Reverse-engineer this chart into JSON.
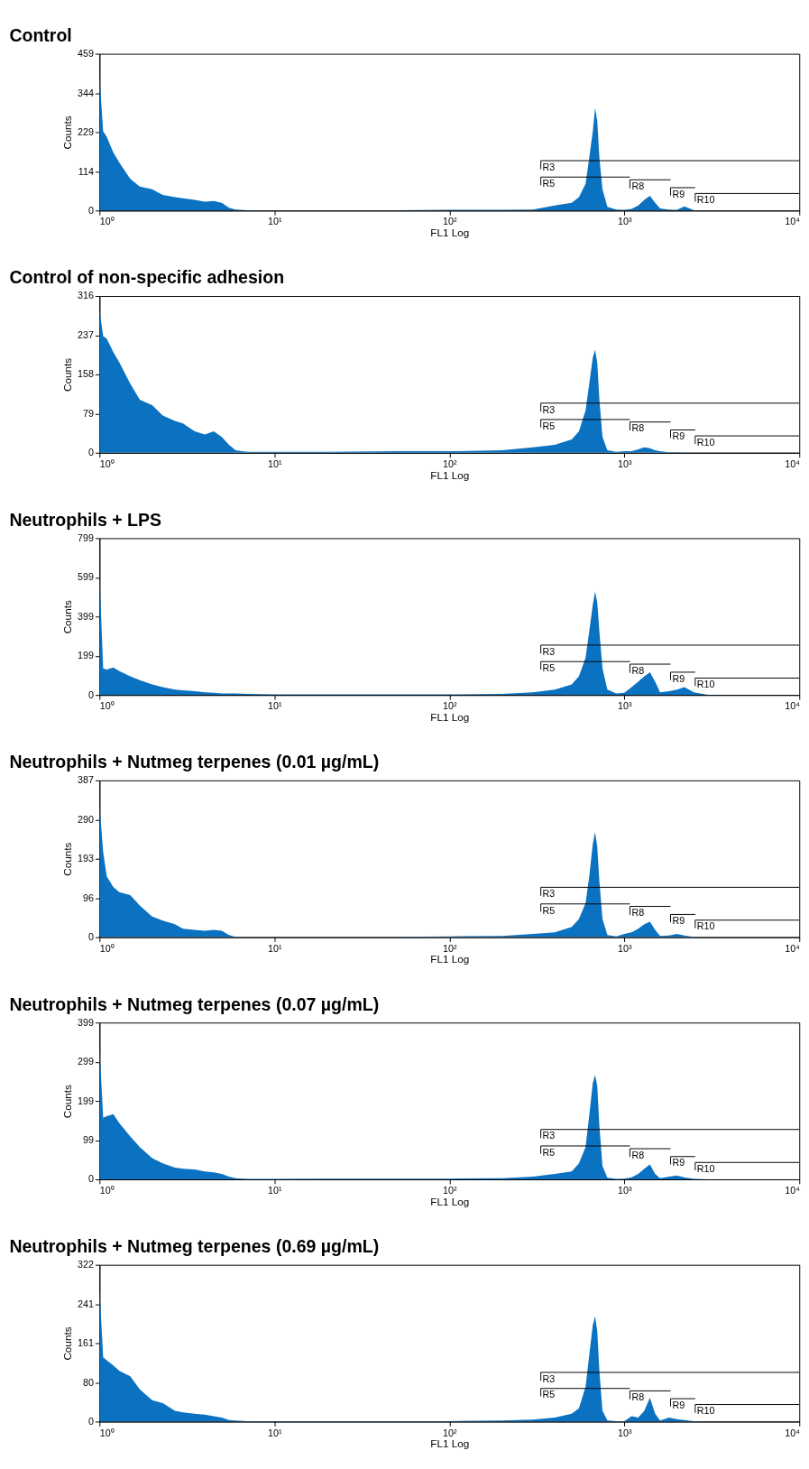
{
  "chart_data": [
    {
      "type": "area",
      "title": "Control",
      "xlabel": "FL1 Log",
      "ylabel": "Counts",
      "log": "x",
      "grid": false,
      "x": [
        1,
        1.05,
        1.1,
        1.2,
        1.3,
        1.5,
        1.7,
        2,
        2.3,
        2.7,
        3,
        3.5,
        4,
        4.5,
        5,
        5.5,
        6,
        7,
        10,
        20,
        50,
        100,
        200,
        300,
        400,
        500,
        550,
        600,
        630,
        660,
        680,
        700,
        720,
        750,
        800,
        900,
        1000,
        1100,
        1200,
        1300,
        1400,
        1500,
        1600,
        1800,
        2000,
        2200,
        2500,
        3000,
        10000
      ],
      "xlim": [
        1,
        10000
      ],
      "xticks": [
        {
          "value": 1,
          "label": "10⁰"
        },
        {
          "value": 10,
          "label": "10¹"
        },
        {
          "value": 100,
          "label": "10²"
        },
        {
          "value": 1000,
          "label": "10³"
        },
        {
          "value": 10000,
          "label": "10⁴"
        }
      ],
      "ylim": [
        0,
        459
      ],
      "yticks": [
        0,
        114,
        229,
        344,
        459
      ],
      "series": [
        {
          "color": "#0b72c2",
          "values": [
            395,
            232,
            216,
            170,
            140,
            93,
            70,
            62,
            46,
            39,
            36,
            31,
            26,
            28,
            23,
            8,
            3,
            1,
            1,
            1,
            1,
            2,
            2,
            3,
            15,
            23,
            39,
            78,
            155,
            232,
            300,
            263,
            155,
            62,
            11,
            3,
            2,
            5,
            15,
            31,
            43,
            23,
            6,
            3,
            2,
            12,
            1,
            0,
            0
          ]
        },
        {
          "type": "line",
          "name": "R3",
          "color": "#000000",
          "x": [
            333,
            333,
            10000
          ],
          "values": [
            121,
            146,
            146
          ]
        },
        {
          "type": "line",
          "name": "R5",
          "color": "#000000",
          "x": [
            333,
            333,
            1076
          ],
          "values": [
            74,
            98,
            98
          ]
        },
        {
          "type": "line",
          "name": "R8",
          "color": "#000000",
          "x": [
            1076,
            1076,
            1837
          ],
          "values": [
            65,
            90,
            90
          ]
        },
        {
          "type": "line",
          "name": "R9",
          "color": "#000000",
          "x": [
            1837,
            1837,
            2541
          ],
          "values": [
            44,
            67,
            67
          ]
        },
        {
          "type": "line",
          "name": "R10",
          "color": "#000000",
          "x": [
            2541,
            2541,
            10000
          ],
          "values": [
            26,
            50,
            50
          ]
        }
      ]
    },
    {
      "type": "area",
      "title": "Control of non-specific adhesion",
      "xlabel": "FL1 Log",
      "ylabel": "Counts",
      "log": "x",
      "grid": false,
      "x": [
        1,
        1.05,
        1.1,
        1.2,
        1.3,
        1.5,
        1.7,
        2,
        2.3,
        2.7,
        3,
        3.5,
        4,
        4.5,
        5,
        5.5,
        6,
        7,
        10,
        20,
        50,
        100,
        200,
        300,
        400,
        500,
        550,
        600,
        630,
        660,
        680,
        700,
        720,
        750,
        800,
        900,
        1000,
        1100,
        1200,
        1300,
        1400,
        1500,
        1600,
        1800,
        2000,
        2200,
        2500,
        3000,
        10000
      ],
      "xlim": [
        1,
        10000
      ],
      "xticks": [
        {
          "value": 1,
          "label": "10⁰"
        },
        {
          "value": 10,
          "label": "10¹"
        },
        {
          "value": 100,
          "label": "10²"
        },
        {
          "value": 1000,
          "label": "10³"
        },
        {
          "value": 10000,
          "label": "10⁴"
        }
      ],
      "ylim": [
        0,
        316
      ],
      "yticks": [
        0,
        79,
        158,
        237,
        316
      ],
      "series": [
        {
          "color": "#0b72c2",
          "values": [
            288,
            235,
            230,
            203,
            182,
            139,
            107,
            96,
            75,
            64,
            59,
            43,
            37,
            43,
            32,
            16,
            5,
            2,
            2,
            2,
            3,
            3,
            5,
            11,
            16,
            27,
            43,
            85,
            139,
            192,
            208,
            182,
            107,
            32,
            5,
            2,
            3,
            3,
            7,
            11,
            9,
            5,
            3,
            1,
            1,
            0,
            0,
            0,
            0
          ]
        },
        {
          "type": "line",
          "name": "R3",
          "color": "#000000",
          "x": [
            333,
            333,
            10000
          ],
          "values": [
            83,
            100,
            100
          ]
        },
        {
          "type": "line",
          "name": "R5",
          "color": "#000000",
          "x": [
            333,
            333,
            1076
          ],
          "values": [
            51,
            67,
            67
          ]
        },
        {
          "type": "line",
          "name": "R8",
          "color": "#000000",
          "x": [
            1076,
            1076,
            1837
          ],
          "values": [
            45,
            62,
            62
          ]
        },
        {
          "type": "line",
          "name": "R9",
          "color": "#000000",
          "x": [
            1837,
            1837,
            2541
          ],
          "values": [
            30,
            46,
            46
          ]
        },
        {
          "type": "line",
          "name": "R10",
          "color": "#000000",
          "x": [
            2541,
            2541,
            10000
          ],
          "values": [
            18,
            34,
            34
          ]
        }
      ]
    },
    {
      "type": "area",
      "title": "Neutrophils + LPS",
      "xlabel": "FL1 Log",
      "ylabel": "Counts",
      "log": "x",
      "grid": false,
      "x": [
        1,
        1.05,
        1.1,
        1.2,
        1.3,
        1.5,
        1.7,
        2,
        2.3,
        2.7,
        3,
        3.5,
        4,
        4.5,
        5,
        5.5,
        6,
        7,
        10,
        20,
        50,
        100,
        200,
        300,
        400,
        500,
        550,
        600,
        630,
        660,
        680,
        700,
        720,
        750,
        800,
        900,
        1000,
        1100,
        1200,
        1300,
        1400,
        1500,
        1600,
        1800,
        2000,
        2200,
        2500,
        3000,
        10000
      ],
      "xlim": [
        1,
        10000
      ],
      "xticks": [
        {
          "value": 1,
          "label": "10⁰"
        },
        {
          "value": 10,
          "label": "10¹"
        },
        {
          "value": 100,
          "label": "10²"
        },
        {
          "value": 1000,
          "label": "10³"
        },
        {
          "value": 10000,
          "label": "10⁴"
        }
      ],
      "ylim": [
        0,
        799
      ],
      "yticks": [
        0,
        199,
        399,
        599,
        799
      ],
      "series": [
        {
          "color": "#0b72c2",
          "values": [
            621,
            135,
            130,
            140,
            122,
            95,
            76,
            54,
            40,
            27,
            24,
            19,
            14,
            11,
            8,
            8,
            8,
            5,
            3,
            3,
            3,
            3,
            5,
            14,
            27,
            54,
            95,
            189,
            324,
            459,
            527,
            472,
            324,
            135,
            27,
            8,
            11,
            40,
            68,
            95,
            116,
            68,
            14,
            19,
            27,
            40,
            14,
            1,
            0
          ]
        },
        {
          "type": "line",
          "name": "R3",
          "color": "#000000",
          "x": [
            333,
            333,
            10000
          ],
          "values": [
            211,
            254,
            254
          ]
        },
        {
          "type": "line",
          "name": "R5",
          "color": "#000000",
          "x": [
            333,
            333,
            1076
          ],
          "values": [
            129,
            170,
            170
          ]
        },
        {
          "type": "line",
          "name": "R8",
          "color": "#000000",
          "x": [
            1076,
            1076,
            1837
          ],
          "values": [
            113,
            157,
            157
          ]
        },
        {
          "type": "line",
          "name": "R9",
          "color": "#000000",
          "x": [
            1837,
            1837,
            2541
          ],
          "values": [
            76,
            116,
            116
          ]
        },
        {
          "type": "line",
          "name": "R10",
          "color": "#000000",
          "x": [
            2541,
            2541,
            10000
          ],
          "values": [
            46,
            86,
            86
          ]
        }
      ]
    },
    {
      "type": "area",
      "title": "Neutrophils + Nutmeg terpenes (0.01 µg/mL)",
      "xlabel": "FL1 Log",
      "ylabel": "Counts",
      "log": "x",
      "grid": false,
      "x": [
        1,
        1.05,
        1.1,
        1.2,
        1.3,
        1.5,
        1.7,
        2,
        2.3,
        2.7,
        3,
        3.5,
        4,
        4.5,
        5,
        5.5,
        6,
        7,
        10,
        20,
        50,
        100,
        200,
        300,
        400,
        500,
        550,
        600,
        630,
        660,
        680,
        700,
        720,
        750,
        800,
        900,
        1000,
        1100,
        1200,
        1300,
        1400,
        1500,
        1600,
        1800,
        2000,
        2200,
        2500,
        3000,
        10000
      ],
      "xlim": [
        1,
        10000
      ],
      "xticks": [
        {
          "value": 1,
          "label": "10⁰"
        },
        {
          "value": 10,
          "label": "10¹"
        },
        {
          "value": 100,
          "label": "10²"
        },
        {
          "value": 1000,
          "label": "10³"
        },
        {
          "value": 10000,
          "label": "10⁴"
        }
      ],
      "ylim": [
        0,
        387
      ],
      "yticks": [
        0,
        96,
        193,
        290,
        387
      ],
      "series": [
        {
          "color": "#0b72c2",
          "values": [
            329,
            210,
            150,
            124,
            111,
            104,
            78,
            51,
            41,
            32,
            21,
            18,
            16,
            18,
            16,
            5,
            1,
            1,
            1,
            1,
            1,
            2,
            3,
            8,
            12,
            25,
            45,
            84,
            150,
            230,
            259,
            224,
            137,
            45,
            5,
            2,
            8,
            12,
            21,
            32,
            38,
            18,
            3,
            4,
            8,
            4,
            1,
            0,
            0
          ]
        },
        {
          "type": "line",
          "name": "R3",
          "color": "#000000",
          "x": [
            333,
            333,
            10000
          ],
          "values": [
            102,
            123,
            123
          ]
        },
        {
          "type": "line",
          "name": "R5",
          "color": "#000000",
          "x": [
            333,
            333,
            1076
          ],
          "values": [
            63,
            82,
            82
          ]
        },
        {
          "type": "line",
          "name": "R8",
          "color": "#000000",
          "x": [
            1076,
            1076,
            1837
          ],
          "values": [
            55,
            76,
            76
          ]
        },
        {
          "type": "line",
          "name": "R9",
          "color": "#000000",
          "x": [
            1837,
            1837,
            2541
          ],
          "values": [
            37,
            56,
            56
          ]
        },
        {
          "type": "line",
          "name": "R10",
          "color": "#000000",
          "x": [
            2541,
            2541,
            10000
          ],
          "values": [
            22,
            42,
            42
          ]
        }
      ]
    },
    {
      "type": "area",
      "title": "Neutrophils + Nutmeg terpenes (0.07 µg/mL)",
      "xlabel": "FL1 Log",
      "ylabel": "Counts",
      "log": "x",
      "grid": false,
      "x": [
        1,
        1.05,
        1.1,
        1.2,
        1.3,
        1.5,
        1.7,
        2,
        2.3,
        2.7,
        3,
        3.5,
        4,
        4.5,
        5,
        5.5,
        6,
        7,
        10,
        20,
        50,
        100,
        200,
        300,
        400,
        500,
        550,
        600,
        630,
        660,
        680,
        700,
        720,
        750,
        800,
        900,
        1000,
        1100,
        1200,
        1300,
        1400,
        1500,
        1600,
        1800,
        2000,
        2200,
        2500,
        3000,
        10000
      ],
      "xlim": [
        1,
        10000
      ],
      "xticks": [
        {
          "value": 1,
          "label": "10⁰"
        },
        {
          "value": 10,
          "label": "10¹"
        },
        {
          "value": 100,
          "label": "10²"
        },
        {
          "value": 1000,
          "label": "10³"
        },
        {
          "value": 10000,
          "label": "10⁴"
        }
      ],
      "ylim": [
        0,
        399
      ],
      "yticks": [
        0,
        99,
        199,
        299,
        399
      ],
      "series": [
        {
          "color": "#0b72c2",
          "values": [
            340,
            157,
            161,
            166,
            143,
            109,
            82,
            54,
            41,
            30,
            27,
            25,
            20,
            18,
            14,
            7,
            3,
            1,
            1,
            2,
            2,
            2,
            3,
            7,
            14,
            20,
            41,
            82,
            163,
            245,
            266,
            238,
            136,
            34,
            4,
            1,
            2,
            5,
            14,
            27,
            38,
            14,
            3,
            7,
            10,
            5,
            1,
            0,
            0
          ]
        },
        {
          "type": "line",
          "name": "R3",
          "color": "#000000",
          "x": [
            333,
            333,
            10000
          ],
          "values": [
            105,
            127,
            127
          ]
        },
        {
          "type": "line",
          "name": "R5",
          "color": "#000000",
          "x": [
            333,
            333,
            1076
          ],
          "values": [
            65,
            85,
            85
          ]
        },
        {
          "type": "line",
          "name": "R8",
          "color": "#000000",
          "x": [
            1076,
            1076,
            1837
          ],
          "values": [
            57,
            78,
            78
          ]
        },
        {
          "type": "line",
          "name": "R9",
          "color": "#000000",
          "x": [
            1837,
            1837,
            2541
          ],
          "values": [
            38,
            58,
            58
          ]
        },
        {
          "type": "line",
          "name": "R10",
          "color": "#000000",
          "x": [
            2541,
            2541,
            10000
          ],
          "values": [
            23,
            43,
            43
          ]
        }
      ]
    },
    {
      "type": "area",
      "title": "Neutrophils + Nutmeg terpenes (0.69 µg/mL)",
      "xlabel": "FL1 Log",
      "ylabel": "Counts",
      "log": "x",
      "grid": false,
      "x": [
        1,
        1.05,
        1.1,
        1.2,
        1.3,
        1.5,
        1.7,
        2,
        2.3,
        2.7,
        3,
        3.5,
        4,
        4.5,
        5,
        5.5,
        6,
        7,
        10,
        20,
        50,
        100,
        200,
        300,
        400,
        500,
        550,
        600,
        630,
        660,
        680,
        700,
        720,
        750,
        800,
        900,
        1000,
        1100,
        1200,
        1300,
        1400,
        1500,
        1600,
        1800,
        2000,
        2200,
        2500,
        3000,
        10000
      ],
      "xlim": [
        1,
        10000
      ],
      "xticks": [
        {
          "value": 1,
          "label": "10⁰"
        },
        {
          "value": 10,
          "label": "10¹"
        },
        {
          "value": 100,
          "label": "10²"
        },
        {
          "value": 1000,
          "label": "10³"
        },
        {
          "value": 10000,
          "label": "10⁴"
        }
      ],
      "ylim": [
        0,
        322
      ],
      "yticks": [
        0,
        80,
        161,
        241,
        322
      ],
      "series": [
        {
          "color": "#0b72c2",
          "values": [
            275,
            132,
            126,
            115,
            104,
            93,
            66,
            44,
            38,
            22,
            19,
            16,
            14,
            11,
            8,
            3,
            2,
            1,
            1,
            1,
            1,
            1,
            2,
            4,
            8,
            16,
            27,
            71,
            137,
            198,
            216,
            187,
            104,
            22,
            2,
            1,
            1,
            11,
            8,
            22,
            49,
            16,
            2,
            8,
            5,
            3,
            1,
            0,
            0
          ]
        },
        {
          "type": "line",
          "name": "R3",
          "color": "#000000",
          "x": [
            333,
            333,
            10000
          ],
          "values": [
            84,
            101,
            101
          ]
        },
        {
          "type": "line",
          "name": "R5",
          "color": "#000000",
          "x": [
            333,
            333,
            1076
          ],
          "values": [
            52,
            68,
            68
          ]
        },
        {
          "type": "line",
          "name": "R8",
          "color": "#000000",
          "x": [
            1076,
            1076,
            1837
          ],
          "values": [
            46,
            63,
            63
          ]
        },
        {
          "type": "line",
          "name": "R9",
          "color": "#000000",
          "x": [
            1837,
            1837,
            2541
          ],
          "values": [
            31,
            47,
            47
          ]
        },
        {
          "type": "line",
          "name": "R10",
          "color": "#000000",
          "x": [
            2541,
            2541,
            10000
          ],
          "values": [
            18,
            35,
            35
          ]
        }
      ]
    }
  ]
}
